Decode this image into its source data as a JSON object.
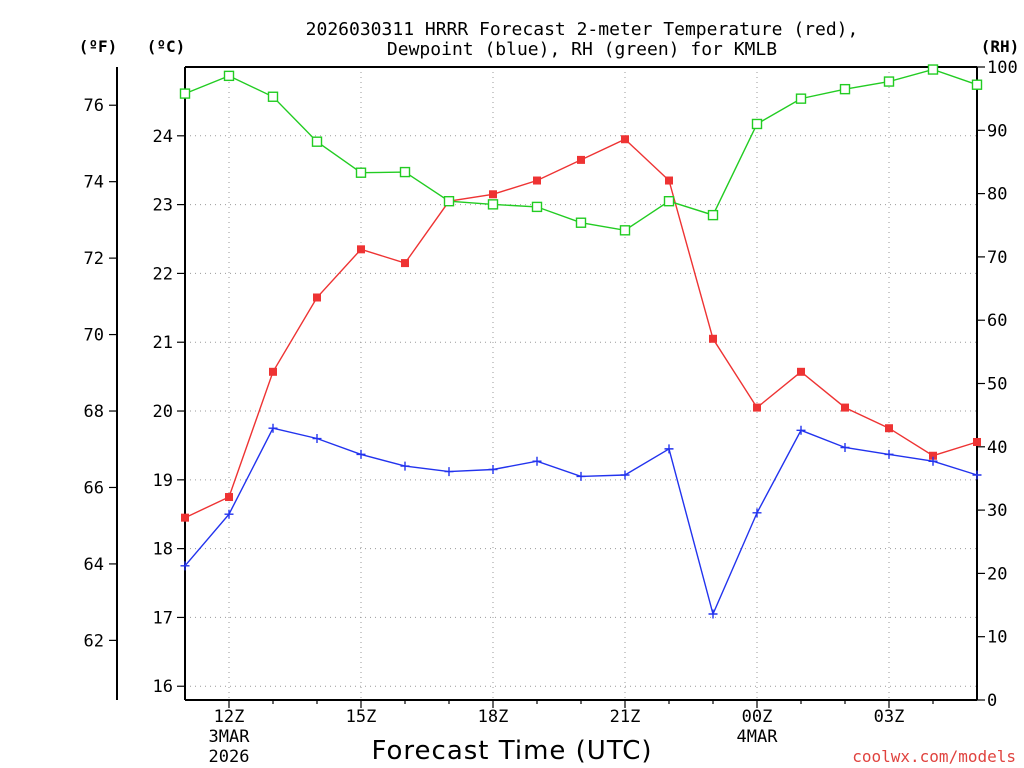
{
  "chart_data": {
    "type": "line",
    "title_line1": "2026030311 HRRR Forecast 2-meter Temperature (red),",
    "title_line2": "Dewpoint (blue), RH (green) for KMLB",
    "xlabel": "Forecast Time (UTC)",
    "watermark": "coolwx.com/models",
    "unit_labels": {
      "fahrenheit": "(ºF)",
      "celsius": "(ºC)",
      "rh": "(RH)"
    },
    "x_ticks": [
      {
        "hour": 1,
        "label": "12Z",
        "sub1": "3MAR",
        "sub2": "2026"
      },
      {
        "hour": 4,
        "label": "15Z",
        "sub1": "",
        "sub2": ""
      },
      {
        "hour": 7,
        "label": "18Z",
        "sub1": "",
        "sub2": ""
      },
      {
        "hour": 10,
        "label": "21Z",
        "sub1": "",
        "sub2": ""
      },
      {
        "hour": 13,
        "label": "00Z",
        "sub1": "4MAR",
        "sub2": ""
      },
      {
        "hour": 16,
        "label": "03Z",
        "sub1": "",
        "sub2": ""
      }
    ],
    "x_range": [
      0,
      18
    ],
    "celsius_range": [
      15.8,
      25.0
    ],
    "rh_range": [
      0,
      100
    ],
    "celsius_ticks": [
      16,
      17,
      18,
      19,
      20,
      21,
      22,
      23,
      24
    ],
    "fahrenheit_ticks": [
      62,
      64,
      66,
      68,
      70,
      72,
      74,
      76
    ],
    "rh_ticks": [
      0,
      10,
      20,
      30,
      40,
      50,
      60,
      70,
      80,
      90,
      100
    ],
    "series": [
      {
        "name": "Temperature",
        "unit": "C",
        "color": "#ee3333",
        "marker": "filled-square",
        "hours": [
          0,
          1,
          2,
          3,
          4,
          5,
          6,
          7,
          8,
          9,
          10,
          11,
          12,
          13,
          14,
          15,
          16,
          17,
          18
        ],
        "values": [
          18.45,
          18.75,
          20.57,
          21.65,
          22.35,
          22.15,
          23.05,
          23.15,
          23.35,
          23.65,
          23.95,
          23.35,
          21.05,
          20.05,
          20.57,
          20.05,
          19.75,
          19.35,
          19.55
        ]
      },
      {
        "name": "Dewpoint",
        "unit": "C",
        "color": "#2233ee",
        "marker": "plus",
        "hours": [
          0,
          1,
          2,
          3,
          4,
          5,
          6,
          7,
          8,
          9,
          10,
          11,
          12,
          13,
          14,
          15,
          16,
          17,
          18
        ],
        "values": [
          17.75,
          18.5,
          19.75,
          19.6,
          19.37,
          19.2,
          19.12,
          19.15,
          19.27,
          19.05,
          19.07,
          19.45,
          17.05,
          18.52,
          19.72,
          19.47,
          19.37,
          19.27,
          19.07
        ]
      },
      {
        "name": "RH",
        "unit": "%",
        "color": "#22cc22",
        "marker": "open-square",
        "hours": [
          0,
          1,
          2,
          3,
          4,
          5,
          6,
          7,
          8,
          9,
          10,
          11,
          12,
          13,
          14,
          15,
          16,
          17,
          18
        ],
        "values": [
          95.8,
          98.6,
          95.3,
          88.2,
          83.3,
          83.4,
          78.8,
          78.3,
          77.9,
          75.4,
          74.2,
          78.8,
          76.6,
          91.0,
          95.0,
          96.5,
          97.7,
          99.6,
          97.2
        ]
      }
    ]
  }
}
